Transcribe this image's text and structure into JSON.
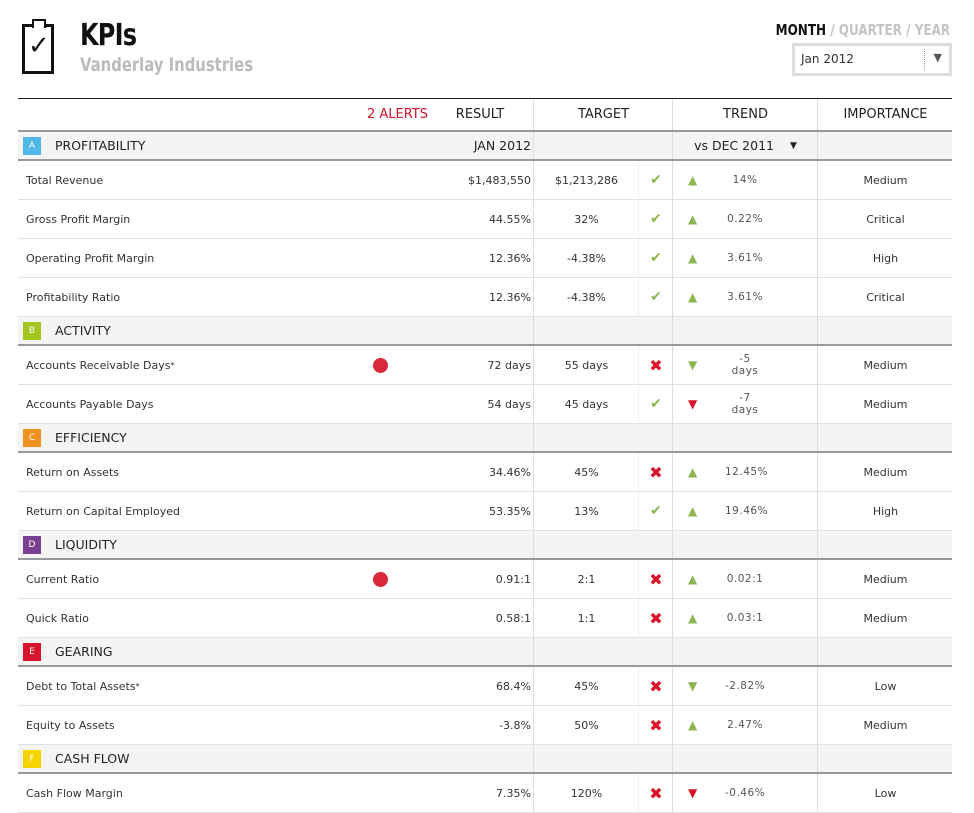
{
  "header": {
    "title": "KPIs",
    "subtitle": "Vanderlay Industries",
    "periods": [
      "MONTH",
      "QUARTER",
      "YEAR"
    ],
    "active_period": "MONTH",
    "period_select": "Jan 2012"
  },
  "table": {
    "columns": {
      "alerts": "2 ALERTS",
      "result": "RESULT",
      "target": "TARGET",
      "trend": "TREND",
      "importance": "IMPORTANCE"
    },
    "status_colors": {
      "good": "#8db552",
      "bad": "#d7142b",
      "alert": "#d8283a"
    },
    "sections": [
      {
        "letter": "A",
        "name": "PROFITABILITY",
        "color": "#4fb8e8",
        "result_period": "JAN 2012",
        "trend_period": "vs DEC 2011",
        "rows": [
          {
            "name": "Total Revenue",
            "result": "$1,483,550",
            "target": "$1,213,286",
            "met": true,
            "trend_dir": "up",
            "trend_good": true,
            "trend": "14%",
            "importance": "Medium"
          },
          {
            "name": "Gross Profit Margin",
            "result": "44.55%",
            "target": "32%",
            "met": true,
            "trend_dir": "up",
            "trend_good": true,
            "trend": "0.22%",
            "importance": "Critical"
          },
          {
            "name": "Operating Profit Margin",
            "result": "12.36%",
            "target": "-4.38%",
            "met": true,
            "trend_dir": "up",
            "trend_good": true,
            "trend": "3.61%",
            "importance": "High"
          },
          {
            "name": "Profitability Ratio",
            "result": "12.36%",
            "target": "-4.38%",
            "met": true,
            "trend_dir": "up",
            "trend_good": true,
            "trend": "3.61%",
            "importance": "Critical"
          }
        ]
      },
      {
        "letter": "B",
        "name": "ACTIVITY",
        "color": "#a3c520",
        "rows": [
          {
            "name": "Accounts Receivable Days",
            "note": "*",
            "alert": true,
            "result": "72 days",
            "target": "55 days",
            "met": false,
            "trend_dir": "down",
            "trend_good": true,
            "trend": "-5 days",
            "importance": "Medium"
          },
          {
            "name": "Accounts Payable Days",
            "result": "54 days",
            "target": "45 days",
            "met": true,
            "trend_dir": "down",
            "trend_good": false,
            "trend": "-7 days",
            "importance": "Medium"
          }
        ]
      },
      {
        "letter": "C",
        "name": "EFFICIENCY",
        "color": "#f0901e",
        "rows": [
          {
            "name": "Return on Assets",
            "result": "34.46%",
            "target": "45%",
            "met": false,
            "trend_dir": "up",
            "trend_good": true,
            "trend": "12.45%",
            "importance": "Medium"
          },
          {
            "name": "Return on Capital Employed",
            "result": "53.35%",
            "target": "13%",
            "met": true,
            "trend_dir": "up",
            "trend_good": true,
            "trend": "19.46%",
            "importance": "High"
          }
        ]
      },
      {
        "letter": "D",
        "name": "LIQUIDITY",
        "color": "#7b3f8f",
        "rows": [
          {
            "name": "Current Ratio",
            "alert": true,
            "result": "0.91:1",
            "target": "2:1",
            "met": false,
            "trend_dir": "up",
            "trend_good": true,
            "trend": "0.02:1",
            "importance": "Medium"
          },
          {
            "name": "Quick Ratio",
            "result": "0.58:1",
            "target": "1:1",
            "met": false,
            "trend_dir": "up",
            "trend_good": true,
            "trend": "0.03:1",
            "importance": "Medium"
          }
        ]
      },
      {
        "letter": "E",
        "name": "GEARING",
        "color": "#d7142b",
        "rows": [
          {
            "name": "Debt to Total Assets",
            "note": "*",
            "result": "68.4%",
            "target": "45%",
            "met": false,
            "trend_dir": "down",
            "trend_good": true,
            "trend": "-2.82%",
            "importance": "Low"
          },
          {
            "name": "Equity to Assets",
            "result": "-3.8%",
            "target": "50%",
            "met": false,
            "trend_dir": "up",
            "trend_good": true,
            "trend": "2.47%",
            "importance": "Medium"
          }
        ]
      },
      {
        "letter": "F",
        "name": "CASH FLOW",
        "color": "#f5d400",
        "rows": [
          {
            "name": "Cash Flow Margin",
            "result": "7.35%",
            "target": "120%",
            "met": false,
            "trend_dir": "down",
            "trend_good": false,
            "trend": "-0.46%",
            "importance": "Low"
          }
        ]
      }
    ]
  }
}
